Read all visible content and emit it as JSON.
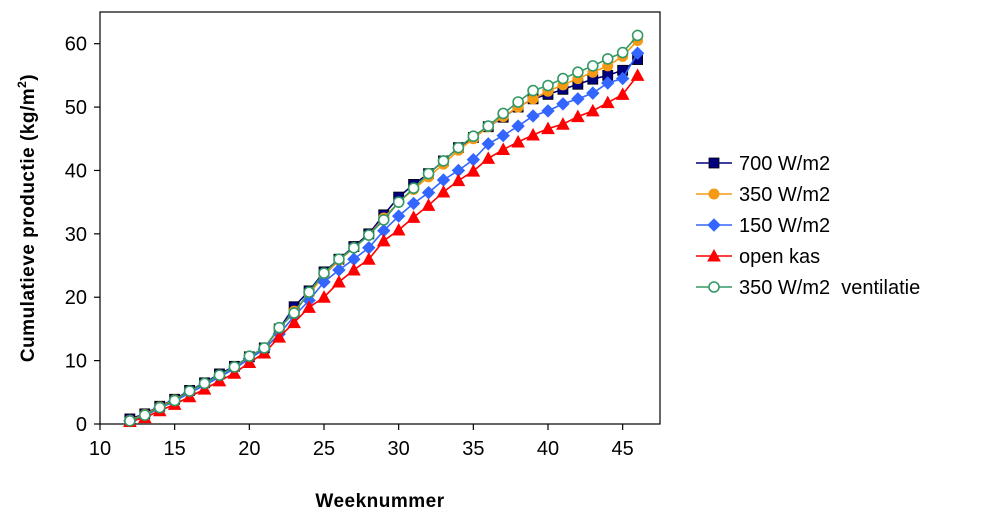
{
  "chart_data": {
    "type": "line",
    "xlabel": "Weeknummer",
    "ylabel": "Cumulatieve productie (kg/m",
    "ylabel_superscript": "2",
    "ylabel_suffix": ")",
    "xlim": [
      10,
      47.5
    ],
    "ylim": [
      0,
      65
    ],
    "x_ticks": [
      10,
      15,
      20,
      25,
      30,
      35,
      40,
      45
    ],
    "y_ticks": [
      0,
      10,
      20,
      30,
      40,
      50,
      60
    ],
    "grid": false,
    "legend_position": "right",
    "x": [
      12,
      13,
      14,
      15,
      16,
      17,
      18,
      19,
      20,
      21,
      22,
      23,
      24,
      25,
      26,
      27,
      28,
      29,
      30,
      31,
      32,
      33,
      34,
      35,
      36,
      37,
      38,
      39,
      40,
      41,
      42,
      43,
      44,
      45,
      46
    ],
    "series": [
      {
        "name": "700 W/m2",
        "color": "#000080",
        "marker": "square",
        "values": [
          0.8,
          1.6,
          2.8,
          3.9,
          5.3,
          6.5,
          7.9,
          9.1,
          10.6,
          12.0,
          15.0,
          18.5,
          21.0,
          24.0,
          26.0,
          28.0,
          30.0,
          33.0,
          35.8,
          37.8,
          39.5,
          41.5,
          43.6,
          45.2,
          46.9,
          48.4,
          50.0,
          51.3,
          52.0,
          52.8,
          53.6,
          54.4,
          55.0,
          55.8,
          57.5
        ]
      },
      {
        "name": "350 W/m2",
        "color": "#F59A12",
        "marker": "circle",
        "values": [
          0.6,
          1.5,
          2.7,
          3.8,
          5.2,
          6.4,
          7.7,
          9.0,
          10.6,
          12.0,
          15.0,
          17.8,
          20.5,
          23.5,
          25.8,
          27.8,
          29.8,
          32.5,
          35.0,
          37.0,
          39.0,
          41.0,
          43.2,
          45.0,
          46.9,
          48.5,
          50.0,
          51.3,
          52.5,
          53.5,
          54.5,
          55.5,
          56.5,
          58.0,
          60.5
        ]
      },
      {
        "name": "150 W/m2",
        "color": "#3366FF",
        "marker": "diamond",
        "values": [
          0.5,
          1.3,
          2.5,
          3.6,
          4.9,
          6.1,
          7.4,
          8.7,
          10.3,
          11.8,
          14.2,
          17.0,
          19.5,
          22.4,
          24.3,
          26.0,
          27.8,
          30.5,
          32.8,
          34.8,
          36.5,
          38.5,
          40.0,
          41.7,
          44.2,
          45.5,
          47.0,
          48.6,
          49.4,
          50.5,
          51.3,
          52.2,
          53.8,
          54.5,
          58.5
        ]
      },
      {
        "name": "open kas",
        "color": "#FF0000",
        "marker": "triangle",
        "values": [
          0.4,
          1.0,
          2.1,
          3.1,
          4.3,
          5.5,
          6.8,
          8.0,
          9.7,
          11.2,
          13.7,
          16.0,
          18.4,
          20.0,
          22.4,
          24.3,
          26.0,
          28.9,
          30.6,
          32.6,
          34.5,
          36.6,
          38.4,
          39.9,
          41.9,
          43.3,
          44.5,
          45.6,
          46.6,
          47.3,
          48.5,
          49.4,
          50.7,
          52.0,
          55.0
        ]
      },
      {
        "name": "350 W/m2  ventilatie",
        "color": "#339966",
        "marker": "open-circle",
        "values": [
          0.5,
          1.4,
          2.6,
          3.7,
          5.2,
          6.4,
          7.7,
          9.0,
          10.7,
          12.0,
          15.2,
          17.5,
          20.8,
          23.8,
          26.0,
          27.8,
          29.8,
          32.2,
          35.0,
          37.2,
          39.5,
          41.5,
          43.6,
          45.4,
          47.0,
          49.0,
          50.8,
          52.6,
          53.4,
          54.5,
          55.5,
          56.5,
          57.6,
          58.6,
          61.3
        ]
      }
    ]
  }
}
